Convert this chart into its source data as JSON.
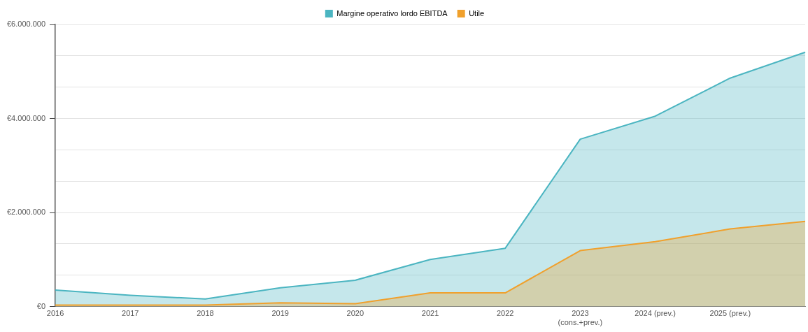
{
  "chart_data": {
    "type": "area",
    "categories": [
      "2016",
      "2017",
      "2018",
      "2019",
      "2020",
      "2021",
      "2022",
      "2023\n(cons.+prev.)",
      "2024 (prev.)",
      "2025 (prev.)",
      null
    ],
    "series": [
      {
        "name": "Margine operativo lordo EBITDA",
        "color": "#4bb5c1",
        "values": [
          350000,
          240000,
          160000,
          400000,
          560000,
          1000000,
          1240000,
          3560000,
          4050000,
          4860000,
          5410000
        ]
      },
      {
        "name": "Utile",
        "color": "#f0a02c",
        "values": [
          30000,
          30000,
          30000,
          80000,
          60000,
          290000,
          290000,
          1190000,
          1380000,
          1650000,
          1810000
        ]
      }
    ],
    "ylim": [
      0,
      6000000
    ],
    "yticks": [
      {
        "value": 0,
        "label": "€0"
      },
      {
        "value": 666667,
        "label": null
      },
      {
        "value": 1333333,
        "label": null
      },
      {
        "value": 2000000,
        "label": "€2.000.000"
      },
      {
        "value": 2666667,
        "label": null
      },
      {
        "value": 3333333,
        "label": null
      },
      {
        "value": 4000000,
        "label": "€4.000.000"
      },
      {
        "value": 4666667,
        "label": null
      },
      {
        "value": 5333333,
        "label": null
      },
      {
        "value": 6000000,
        "label": "€6.000.000"
      }
    ],
    "grid": "y",
    "legend": "top",
    "marker": "none",
    "line_style": "solid"
  }
}
